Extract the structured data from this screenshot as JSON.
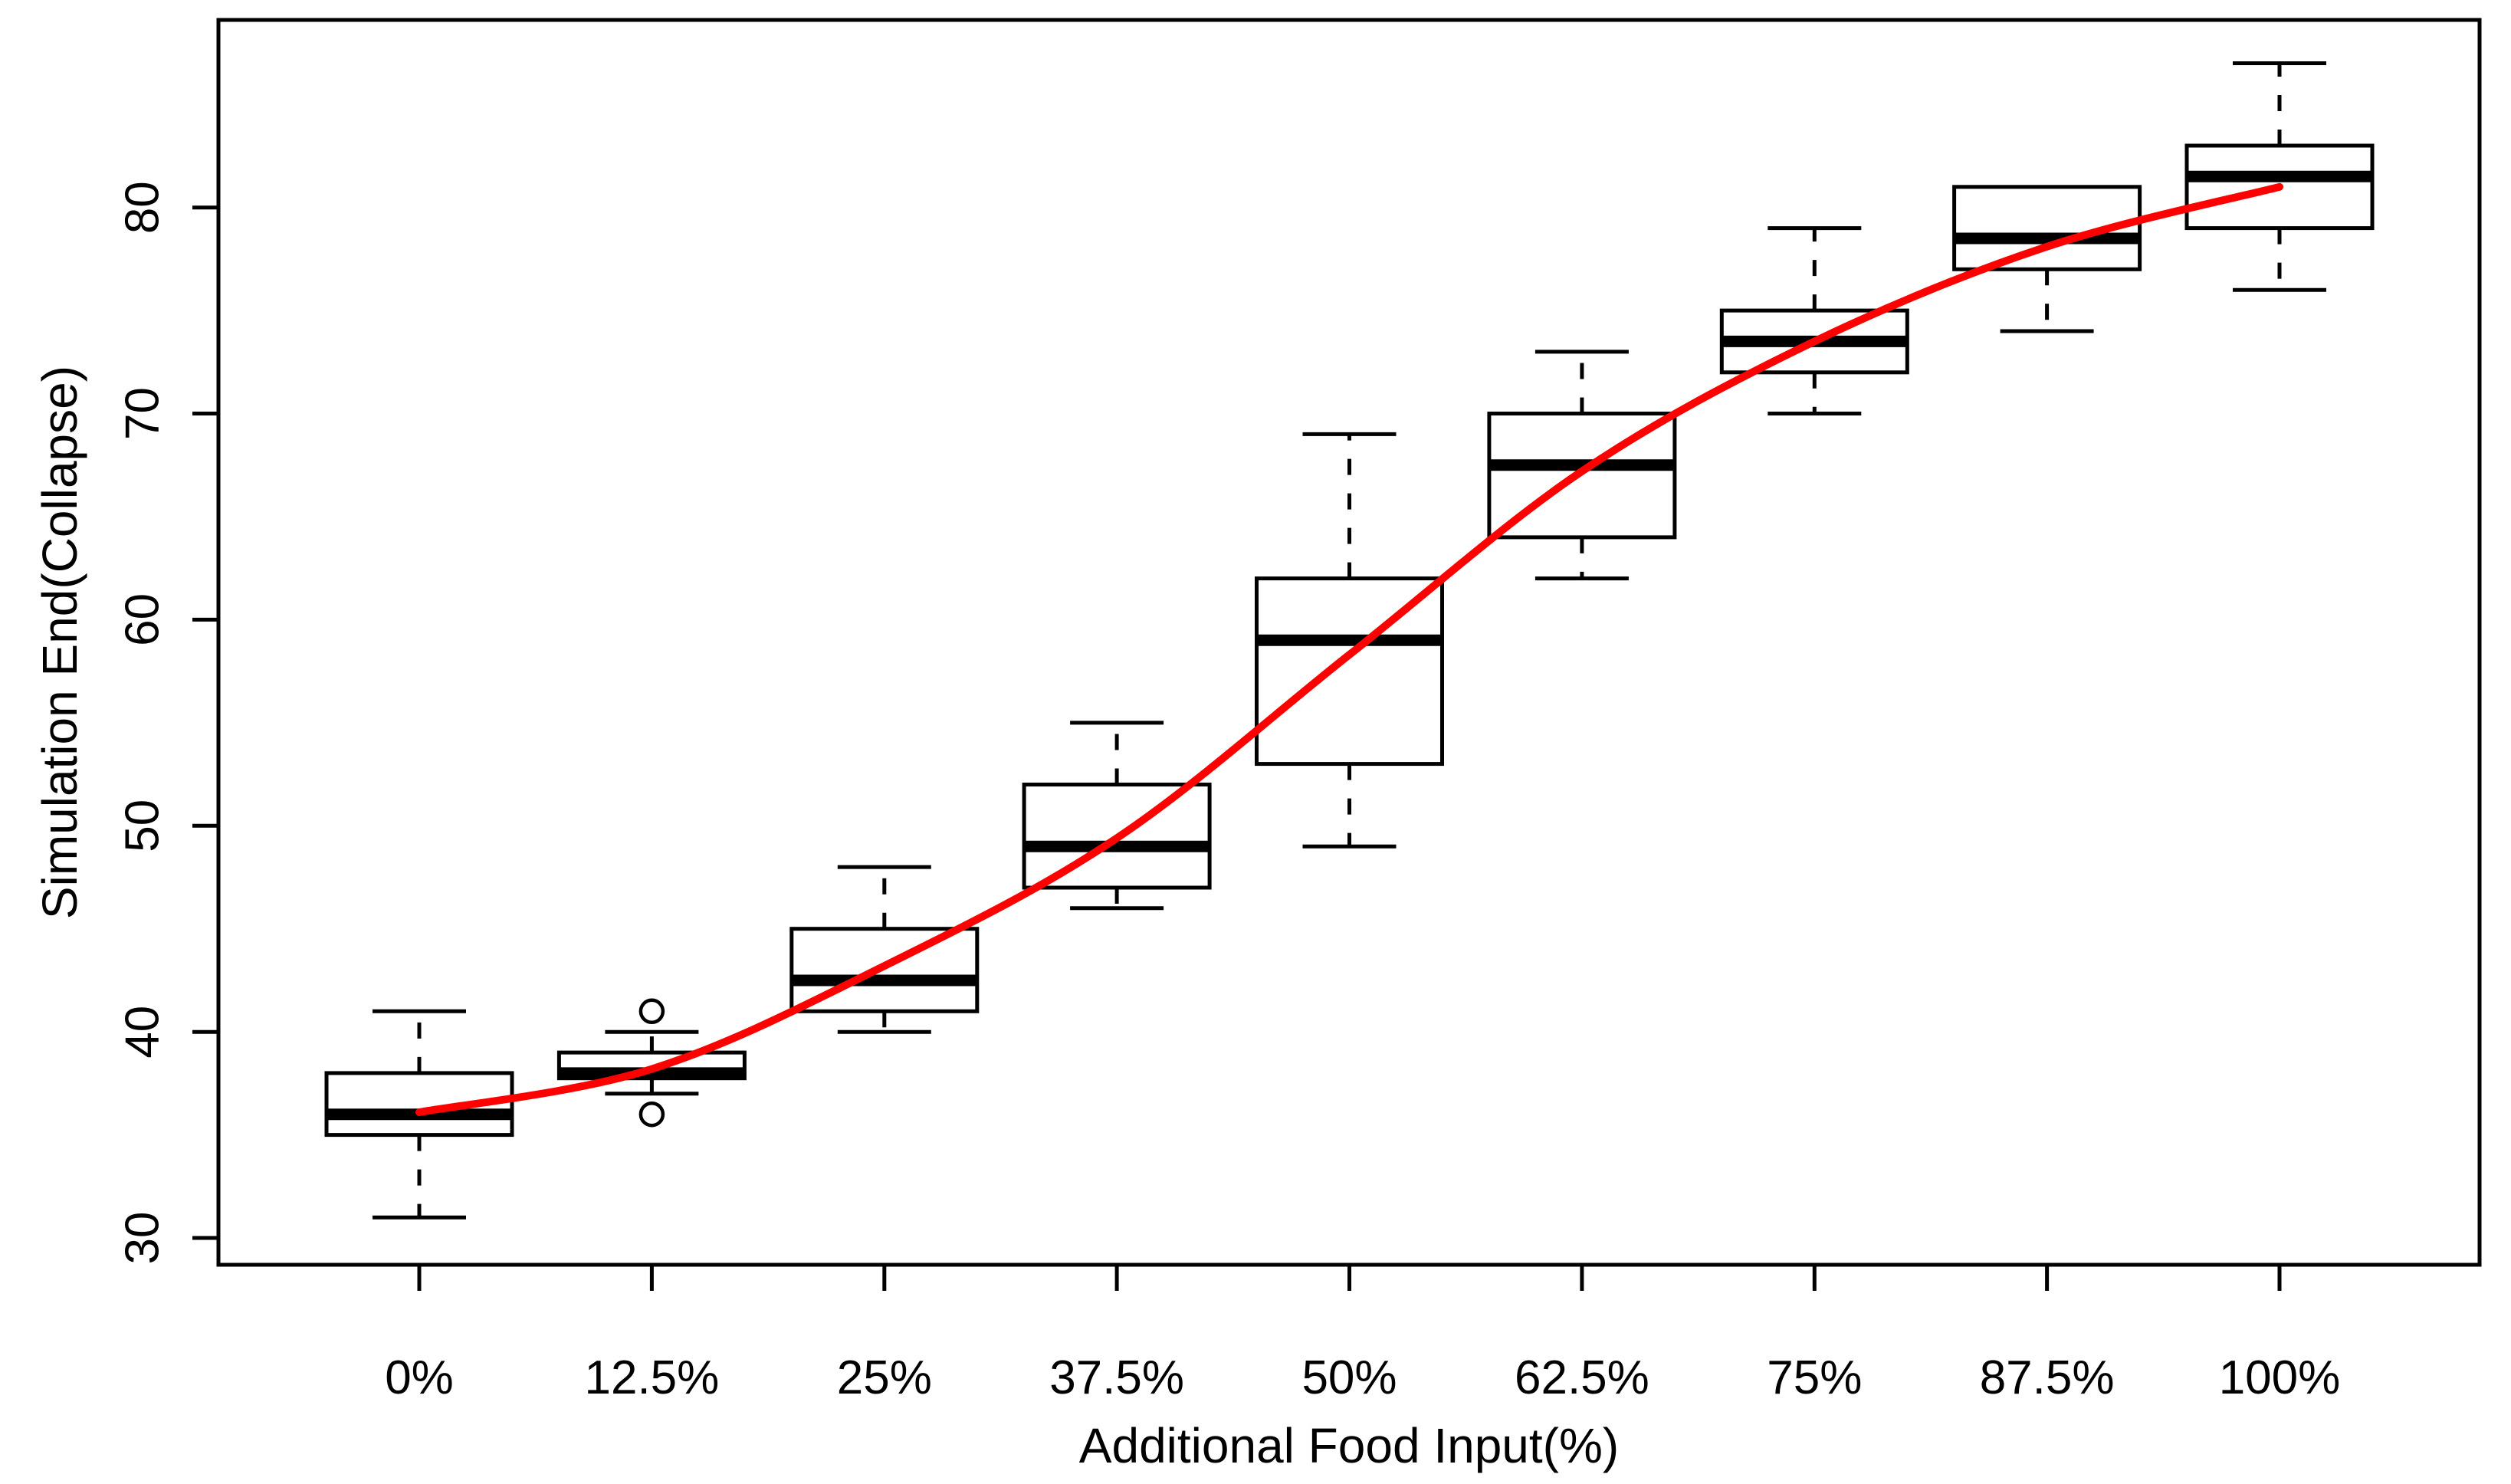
{
  "figure": {
    "background": "#ffffff",
    "foreground": "#000000"
  },
  "chart_data": {
    "type": "boxplot",
    "title": "",
    "xlabel": "Additional Food Input(%)",
    "ylabel": "Simulation End(Collapse)",
    "categories": [
      "0%",
      "12.5%",
      "25%",
      "37.5%",
      "50%",
      "62.5%",
      "75%",
      "87.5%",
      "100%"
    ],
    "y_ticks": [
      30,
      40,
      50,
      60,
      70,
      80
    ],
    "ylim": [
      28.7,
      89.1
    ],
    "grid": false,
    "legend": null,
    "boxes": [
      {
        "category": "0%",
        "min": 31,
        "q1": 35,
        "median": 36,
        "q3": 38,
        "max": 41,
        "outliers": []
      },
      {
        "category": "12.5%",
        "min": 37,
        "q1": 37.75,
        "median": 38,
        "q3": 39,
        "max": 40,
        "outliers": [
          36,
          41
        ]
      },
      {
        "category": "25%",
        "min": 40,
        "q1": 41,
        "median": 42.5,
        "q3": 45,
        "max": 48,
        "outliers": []
      },
      {
        "category": "37.5%",
        "min": 46,
        "q1": 47,
        "median": 49,
        "q3": 52,
        "max": 55,
        "outliers": []
      },
      {
        "category": "50%",
        "min": 49,
        "q1": 53,
        "median": 59,
        "q3": 62,
        "max": 69,
        "outliers": []
      },
      {
        "category": "62.5%",
        "min": 62,
        "q1": 64,
        "median": 67.5,
        "q3": 70,
        "max": 73,
        "outliers": []
      },
      {
        "category": "75%",
        "min": 70,
        "q1": 72,
        "median": 73.5,
        "q3": 75,
        "max": 79,
        "outliers": []
      },
      {
        "category": "87.5%",
        "min": 74,
        "q1": 77,
        "median": 78.5,
        "q3": 81,
        "max": 81,
        "outliers": []
      },
      {
        "category": "100%",
        "min": 76,
        "q1": 79,
        "median": 81.5,
        "q3": 83,
        "max": 87,
        "outliers": []
      }
    ],
    "trend_line": {
      "name": "smoothed-fit-line",
      "color": "#ff0000",
      "x": [
        "0%",
        "12.5%",
        "25%",
        "37.5%",
        "50%",
        "62.5%",
        "75%",
        "87.5%",
        "100%"
      ],
      "values": [
        36.1,
        38.2,
        43.2,
        49.4,
        58.3,
        67.2,
        73.5,
        78.1,
        81.0
      ]
    }
  }
}
